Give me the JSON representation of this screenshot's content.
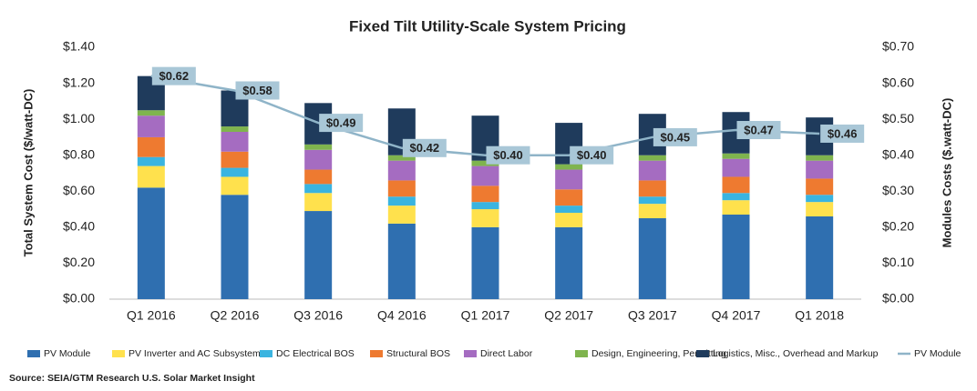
{
  "chart_data": {
    "type": "bar",
    "stacked": true,
    "title": "Fixed Tilt Utility-Scale System Pricing",
    "y_label": "Total System Cost ($/watt-DC)",
    "y2_label": "Modules Costs ($.watt-DC)",
    "source": "Source: SEIA/GTM Research U.S. Solar Market Insight",
    "categories": [
      "Q1 2016",
      "Q2 2016",
      "Q3 2016",
      "Q4 2016",
      "Q1 2017",
      "Q2 2017",
      "Q3 2017",
      "Q4 2017",
      "Q1 2018"
    ],
    "series": [
      {
        "name": "PV Module",
        "color": "#2f6fb0",
        "values": [
          0.62,
          0.58,
          0.49,
          0.42,
          0.4,
          0.4,
          0.45,
          0.47,
          0.46
        ]
      },
      {
        "name": "PV Inverter and AC Subsystem",
        "color": "#ffe14d",
        "values": [
          0.12,
          0.1,
          0.1,
          0.1,
          0.1,
          0.08,
          0.08,
          0.08,
          0.08
        ]
      },
      {
        "name": "DC Electrical BOS",
        "color": "#3ab4e0",
        "values": [
          0.05,
          0.05,
          0.05,
          0.05,
          0.04,
          0.04,
          0.04,
          0.04,
          0.04
        ]
      },
      {
        "name": "Structural BOS",
        "color": "#ee7a30",
        "values": [
          0.11,
          0.09,
          0.08,
          0.09,
          0.09,
          0.09,
          0.09,
          0.09,
          0.09
        ]
      },
      {
        "name": "Direct Labor",
        "color": "#a56cc1",
        "values": [
          0.12,
          0.11,
          0.11,
          0.11,
          0.11,
          0.11,
          0.11,
          0.1,
          0.1
        ]
      },
      {
        "name": "Design, Engineering, Permitting",
        "color": "#7fb44e",
        "values": [
          0.03,
          0.03,
          0.03,
          0.03,
          0.03,
          0.03,
          0.03,
          0.03,
          0.03
        ]
      },
      {
        "name": "Logistics, Misc., Overhead and Markup",
        "color": "#1f3b5c",
        "values": [
          0.19,
          0.2,
          0.23,
          0.26,
          0.25,
          0.23,
          0.23,
          0.23,
          0.21
        ]
      },
      {
        "name": "PV Module",
        "type": "line",
        "axis": "y2",
        "color": "#8fb4c8",
        "values": [
          0.62,
          0.58,
          0.49,
          0.42,
          0.4,
          0.4,
          0.45,
          0.47,
          0.46
        ],
        "value_labels": [
          "$0.62",
          "$0.58",
          "$0.49",
          "$0.42",
          "$0.40",
          "$0.40",
          "$0.45",
          "$0.47",
          "$0.46"
        ]
      }
    ],
    "ylim": [
      0,
      1.4
    ],
    "yticks": [
      {
        "value": 0,
        "label": "$0.00"
      },
      {
        "value": 0.2,
        "label": "$0.20"
      },
      {
        "value": 0.4,
        "label": "$0.40"
      },
      {
        "value": 0.6,
        "label": "$0.60"
      },
      {
        "value": 0.8,
        "label": "$0.80"
      },
      {
        "value": 1.0,
        "label": "$1.00"
      },
      {
        "value": 1.2,
        "label": "$1.20"
      },
      {
        "value": 1.4,
        "label": "$1.40"
      }
    ],
    "y2lim": [
      0,
      0.7
    ],
    "y2ticks": [
      {
        "value": 0,
        "label": "$0.00"
      },
      {
        "value": 0.1,
        "label": "$0.10"
      },
      {
        "value": 0.2,
        "label": "$0.20"
      },
      {
        "value": 0.3,
        "label": "$0.30"
      },
      {
        "value": 0.4,
        "label": "$0.40"
      },
      {
        "value": 0.5,
        "label": "$0.50"
      },
      {
        "value": 0.6,
        "label": "$0.60"
      },
      {
        "value": 0.7,
        "label": "$0.70"
      }
    ],
    "grid": false,
    "legend": "bottom"
  }
}
